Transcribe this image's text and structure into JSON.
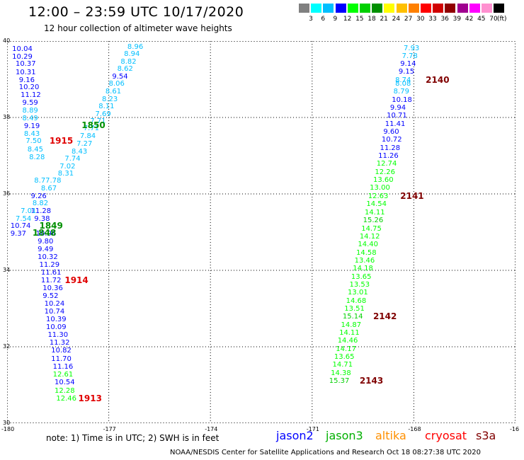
{
  "title": "12:00 – 23:59 UTC 10/17/2020",
  "subtitle": "12 hour collection of altimeter wave heights",
  "scale": {
    "colors": [
      "#808080",
      "#00ffff",
      "#00bfff",
      "#0000ff",
      "#00ff00",
      "#00d000",
      "#009000",
      "#ffff00",
      "#ffc000",
      "#ff8000",
      "#ff0000",
      "#d00000",
      "#900000",
      "#a00090",
      "#ff00ff",
      "#ff90d0",
      "#000000"
    ],
    "labels": [
      "3",
      "6",
      "9",
      "12",
      "15",
      "18",
      "21",
      "24",
      "27",
      "30",
      "33",
      "36",
      "39",
      "42",
      "45",
      "70"
    ],
    "unit": "(ft)"
  },
  "axes": {
    "lon_ticks": [
      "-180",
      "-177",
      "-174",
      "-171",
      "-168",
      "-16"
    ],
    "lat_ticks": [
      "40",
      "38",
      "36",
      "34",
      "32",
      "30"
    ]
  },
  "left_track": [
    {
      "v": "8.96",
      "lon": -176.45,
      "lat": 39.86,
      "c": "#00bfff"
    },
    {
      "v": "8.94",
      "lon": -176.55,
      "lat": 39.66,
      "c": "#00bfff"
    },
    {
      "v": "8.82",
      "lon": -176.65,
      "lat": 39.47,
      "c": "#00bfff"
    },
    {
      "v": "8.62",
      "lon": -176.75,
      "lat": 39.28,
      "c": "#00bfff"
    },
    {
      "v": "9.54",
      "lon": -176.9,
      "lat": 39.08,
      "c": "#0000ff"
    },
    {
      "v": "8.06",
      "lon": -177.0,
      "lat": 38.88,
      "c": "#00bfff"
    },
    {
      "v": "8.61",
      "lon": -177.1,
      "lat": 38.69,
      "c": "#00bfff"
    },
    {
      "v": "8.23",
      "lon": -177.2,
      "lat": 38.48,
      "c": "#00bfff"
    },
    {
      "v": "8.11",
      "lon": -177.3,
      "lat": 38.29,
      "c": "#00bfff"
    },
    {
      "v": "7.69",
      "lon": -177.4,
      "lat": 38.1,
      "c": "#00bfff"
    },
    {
      "v": "7.71",
      "lon": -177.55,
      "lat": 37.91,
      "c": "#00bfff"
    },
    {
      "v": "7.71",
      "lon": -177.75,
      "lat": 37.72,
      "c": "#00bfff"
    },
    {
      "v": "7.84",
      "lon": -177.85,
      "lat": 37.52,
      "c": "#00bfff"
    },
    {
      "v": "7.27",
      "lon": -177.95,
      "lat": 37.32,
      "c": "#00bfff"
    },
    {
      "v": "8.43",
      "lon": -178.1,
      "lat": 37.12,
      "c": "#00bfff"
    },
    {
      "v": "7.74",
      "lon": -178.3,
      "lat": 36.93,
      "c": "#00bfff"
    },
    {
      "v": "7.02",
      "lon": -178.45,
      "lat": 36.73,
      "c": "#00bfff"
    },
    {
      "v": "8.31",
      "lon": -178.5,
      "lat": 36.53,
      "c": "#00bfff"
    },
    {
      "v": "8.77.78",
      "lon": -179.2,
      "lat": 36.35,
      "c": "#00bfff"
    },
    {
      "v": "8.67",
      "lon": -179.0,
      "lat": 36.15,
      "c": "#00bfff"
    },
    {
      "v": "10.04",
      "lon": -179.85,
      "lat": 39.8,
      "c": "#0000ff"
    },
    {
      "v": "10.29",
      "lon": -179.85,
      "lat": 39.6,
      "c": "#0000ff"
    },
    {
      "v": "10.37",
      "lon": -179.75,
      "lat": 39.4,
      "c": "#0000ff"
    },
    {
      "v": "10.31",
      "lon": -179.75,
      "lat": 39.19,
      "c": "#0000ff"
    },
    {
      "v": "9.16",
      "lon": -179.65,
      "lat": 38.99,
      "c": "#0000ff"
    },
    {
      "v": "10.20",
      "lon": -179.65,
      "lat": 38.79,
      "c": "#0000ff"
    },
    {
      "v": "11.12",
      "lon": -179.6,
      "lat": 38.59,
      "c": "#0000ff"
    },
    {
      "v": "9.59",
      "lon": -179.55,
      "lat": 38.39,
      "c": "#0000ff"
    },
    {
      "v": "8.89",
      "lon": -179.55,
      "lat": 38.19,
      "c": "#00bfff"
    },
    {
      "v": "8.49",
      "lon": -179.55,
      "lat": 37.98,
      "c": "#00bfff"
    },
    {
      "v": "9.19",
      "lon": -179.5,
      "lat": 37.78,
      "c": "#0000ff"
    },
    {
      "v": "8.43",
      "lon": -179.5,
      "lat": 37.58,
      "c": "#00bfff"
    },
    {
      "v": "7.50",
      "lon": -179.45,
      "lat": 37.38,
      "c": "#00bfff"
    },
    {
      "v": "8.45",
      "lon": -179.4,
      "lat": 37.17,
      "c": "#00bfff"
    },
    {
      "v": "8.28",
      "lon": -179.35,
      "lat": 36.97,
      "c": "#00bfff"
    },
    {
      "v": "9.26",
      "lon": -179.3,
      "lat": 35.95,
      "c": "#0000ff"
    },
    {
      "v": "8.82",
      "lon": -179.25,
      "lat": 35.76,
      "c": "#00bfff"
    },
    {
      "v": "11.28",
      "lon": -179.3,
      "lat": 35.56,
      "c": "#0000ff"
    },
    {
      "v": "7.01",
      "lon": -179.6,
      "lat": 35.56,
      "c": "#00bfff"
    },
    {
      "v": "7.54",
      "lon": -179.75,
      "lat": 35.36,
      "c": "#00bfff"
    },
    {
      "v": "9.38",
      "lon": -179.2,
      "lat": 35.36,
      "c": "#0000ff"
    },
    {
      "v": "10.74",
      "lon": -179.9,
      "lat": 35.16,
      "c": "#0000ff"
    },
    {
      "v": "9.37",
      "lon": -179.9,
      "lat": 34.96,
      "c": "#0000ff"
    },
    {
      "v": "10.96",
      "lon": -179.15,
      "lat": 34.96,
      "c": "#0000ff"
    },
    {
      "v": "9.80",
      "lon": -179.1,
      "lat": 34.76,
      "c": "#0000ff"
    },
    {
      "v": "9.49",
      "lon": -179.1,
      "lat": 34.56,
      "c": "#0000ff"
    },
    {
      "v": "10.32",
      "lon": -179.1,
      "lat": 34.35,
      "c": "#0000ff"
    },
    {
      "v": "11.29",
      "lon": -179.05,
      "lat": 34.15,
      "c": "#0000ff"
    },
    {
      "v": "11.61",
      "lon": -179.0,
      "lat": 33.95,
      "c": "#0000ff"
    },
    {
      "v": "11.72",
      "lon": -179.0,
      "lat": 33.74,
      "c": "#0000ff"
    },
    {
      "v": "10.36",
      "lon": -178.95,
      "lat": 33.54,
      "c": "#0000ff"
    },
    {
      "v": "9.52",
      "lon": -178.95,
      "lat": 33.34,
      "c": "#0000ff"
    },
    {
      "v": "10.24",
      "lon": -178.9,
      "lat": 33.13,
      "c": "#0000ff"
    },
    {
      "v": "10.74",
      "lon": -178.9,
      "lat": 32.93,
      "c": "#0000ff"
    },
    {
      "v": "10.39",
      "lon": -178.85,
      "lat": 32.73,
      "c": "#0000ff"
    },
    {
      "v": "10.09",
      "lon": -178.85,
      "lat": 32.52,
      "c": "#0000ff"
    },
    {
      "v": "11.30",
      "lon": -178.8,
      "lat": 32.32,
      "c": "#0000ff"
    },
    {
      "v": "11.32",
      "lon": -178.75,
      "lat": 32.11,
      "c": "#0000ff"
    },
    {
      "v": "10.82",
      "lon": -178.7,
      "lat": 31.9,
      "c": "#0000ff"
    },
    {
      "v": "11.70",
      "lon": -178.7,
      "lat": 31.69,
      "c": "#0000ff"
    },
    {
      "v": "11.16",
      "lon": -178.65,
      "lat": 31.48,
      "c": "#0000ff"
    },
    {
      "v": "12.61",
      "lon": -178.65,
      "lat": 31.28,
      "c": "#00ff00"
    },
    {
      "v": "10.54",
      "lon": -178.6,
      "lat": 31.07,
      "c": "#0000ff"
    },
    {
      "v": "12.28",
      "lon": -178.6,
      "lat": 30.86,
      "c": "#00ff00"
    },
    {
      "v": "12.46",
      "lon": -178.55,
      "lat": 30.65,
      "c": "#00ff00"
    }
  ],
  "right_track": [
    {
      "v": "7.93",
      "lon": -168.3,
      "lat": 39.82,
      "c": "#00bfff"
    },
    {
      "v": "7.78",
      "lon": -168.35,
      "lat": 39.62,
      "c": "#00bfff"
    },
    {
      "v": "9.14",
      "lon": -168.4,
      "lat": 39.41,
      "c": "#0000ff"
    },
    {
      "v": "9.15",
      "lon": -168.45,
      "lat": 39.2,
      "c": "#0000ff"
    },
    {
      "v": "8.74",
      "lon": -168.55,
      "lat": 38.99,
      "c": "#00bfff"
    },
    {
      "v": "8.08",
      "lon": -168.55,
      "lat": 38.89,
      "c": "#00bfff"
    },
    {
      "v": "8.79",
      "lon": -168.6,
      "lat": 38.68,
      "c": "#00bfff"
    },
    {
      "v": "10.18",
      "lon": -168.65,
      "lat": 38.47,
      "c": "#0000ff"
    },
    {
      "v": "9.94",
      "lon": -168.7,
      "lat": 38.26,
      "c": "#0000ff"
    },
    {
      "v": "10.71",
      "lon": -168.8,
      "lat": 38.05,
      "c": "#0000ff"
    },
    {
      "v": "11.41",
      "lon": -168.85,
      "lat": 37.84,
      "c": "#0000ff"
    },
    {
      "v": "9.60",
      "lon": -168.9,
      "lat": 37.63,
      "c": "#0000ff"
    },
    {
      "v": "10.72",
      "lon": -168.95,
      "lat": 37.42,
      "c": "#0000ff"
    },
    {
      "v": "11.28",
      "lon": -169.0,
      "lat": 37.21,
      "c": "#0000ff"
    },
    {
      "v": "11.26",
      "lon": -169.05,
      "lat": 37.0,
      "c": "#0000ff"
    },
    {
      "v": "12.74",
      "lon": -169.1,
      "lat": 36.79,
      "c": "#00ff00"
    },
    {
      "v": "12.26",
      "lon": -169.15,
      "lat": 36.58,
      "c": "#00ff00"
    },
    {
      "v": "13.60",
      "lon": -169.2,
      "lat": 36.37,
      "c": "#00ff00"
    },
    {
      "v": "13.00",
      "lon": -169.3,
      "lat": 36.16,
      "c": "#00ff00"
    },
    {
      "v": "12.63",
      "lon": -169.35,
      "lat": 35.95,
      "c": "#00ff00"
    },
    {
      "v": "14.54",
      "lon": -169.4,
      "lat": 35.74,
      "c": "#00ff00"
    },
    {
      "v": "14.11",
      "lon": -169.45,
      "lat": 35.52,
      "c": "#00ff00"
    },
    {
      "v": "15.26",
      "lon": -169.5,
      "lat": 35.31,
      "c": "#00d000"
    },
    {
      "v": "14.75",
      "lon": -169.55,
      "lat": 35.1,
      "c": "#00ff00"
    },
    {
      "v": "14.12",
      "lon": -169.6,
      "lat": 34.89,
      "c": "#00ff00"
    },
    {
      "v": "14.40",
      "lon": -169.65,
      "lat": 34.68,
      "c": "#00ff00"
    },
    {
      "v": "14.58",
      "lon": -169.7,
      "lat": 34.47,
      "c": "#00ff00"
    },
    {
      "v": "13.46",
      "lon": -169.75,
      "lat": 34.26,
      "c": "#00ff00"
    },
    {
      "v": "14.18",
      "lon": -169.8,
      "lat": 34.05,
      "c": "#00ff00"
    },
    {
      "v": "13.65",
      "lon": -169.85,
      "lat": 33.84,
      "c": "#00ff00"
    },
    {
      "v": "13.53",
      "lon": -169.9,
      "lat": 33.63,
      "c": "#00ff00"
    },
    {
      "v": "13.01",
      "lon": -169.95,
      "lat": 33.42,
      "c": "#00ff00"
    },
    {
      "v": "14.68",
      "lon": -170.0,
      "lat": 33.21,
      "c": "#00ff00"
    },
    {
      "v": "13.51",
      "lon": -170.05,
      "lat": 33.0,
      "c": "#00ff00"
    },
    {
      "v": "15.14",
      "lon": -170.1,
      "lat": 32.79,
      "c": "#00d000"
    },
    {
      "v": "14.87",
      "lon": -170.15,
      "lat": 32.58,
      "c": "#00ff00"
    },
    {
      "v": "14.11",
      "lon": -170.2,
      "lat": 32.37,
      "c": "#00ff00"
    },
    {
      "v": "14.46",
      "lon": -170.25,
      "lat": 32.16,
      "c": "#00ff00"
    },
    {
      "v": "14.17",
      "lon": -170.3,
      "lat": 31.95,
      "c": "#00ff00"
    },
    {
      "v": "13.65",
      "lon": -170.35,
      "lat": 31.74,
      "c": "#00ff00"
    },
    {
      "v": "14.71",
      "lon": -170.4,
      "lat": 31.53,
      "c": "#00ff00"
    },
    {
      "v": "14.38",
      "lon": -170.45,
      "lat": 31.32,
      "c": "#00ff00"
    },
    {
      "v": "15.37",
      "lon": -170.5,
      "lat": 31.11,
      "c": "#00d000"
    }
  ],
  "time_labels": [
    {
      "t": "1850",
      "lon": -177.8,
      "lat": 37.8,
      "c": "#009000"
    },
    {
      "t": "1915",
      "lon": -178.75,
      "lat": 37.38,
      "c": "#e00000"
    },
    {
      "t": "1849",
      "lon": -179.05,
      "lat": 35.16,
      "c": "#009000"
    },
    {
      "t": "1848",
      "lon": -179.25,
      "lat": 34.99,
      "c": "#009000"
    },
    {
      "t": "1914",
      "lon": -178.3,
      "lat": 33.74,
      "c": "#e00000"
    },
    {
      "t": "1913",
      "lon": -177.9,
      "lat": 30.65,
      "c": "#e00000"
    },
    {
      "t": "2140",
      "lon": -167.65,
      "lat": 38.99,
      "c": "#800000"
    },
    {
      "t": "2141",
      "lon": -168.4,
      "lat": 35.95,
      "c": "#800000"
    },
    {
      "t": "2142",
      "lon": -169.2,
      "lat": 32.79,
      "c": "#800000"
    },
    {
      "t": "2143",
      "lon": -169.6,
      "lat": 31.11,
      "c": "#800000"
    }
  ],
  "note": "note: 1) Time is in UTC; 2) SWH is in feet",
  "satellites": [
    {
      "name": "jason2",
      "color": "#0000ff"
    },
    {
      "name": "jason3",
      "color": "#00b000"
    },
    {
      "name": "altika",
      "color": "#ff9000"
    },
    {
      "name": "cryosat",
      "color": "#ff0000"
    },
    {
      "name": "s3a",
      "color": "#800000"
    }
  ],
  "footer": "NOAA/NESDIS Center for Satellite Applications and Research    Oct 18 08:27:38 UTC 2020"
}
